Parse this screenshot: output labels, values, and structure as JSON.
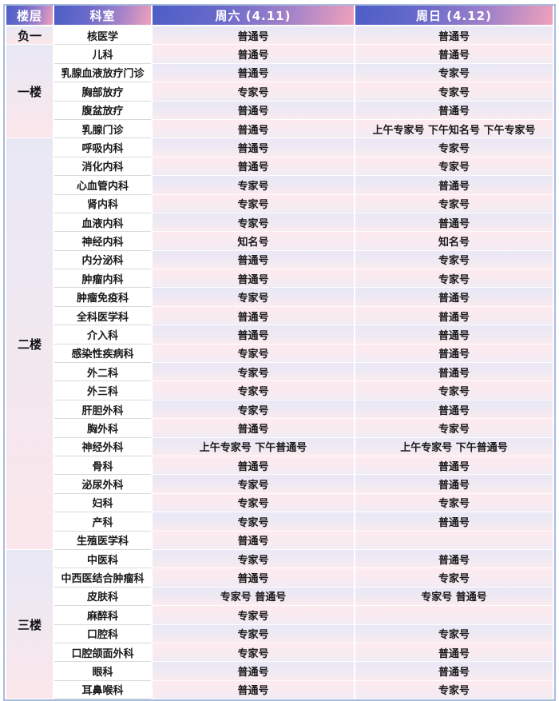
{
  "table": {
    "columns": [
      "楼层",
      "科室",
      "周六 (4.11)",
      "周日 (4.12)"
    ],
    "floors": [
      {
        "label": "负一",
        "rows": [
          {
            "dept": "核医学",
            "sat": "普通号",
            "sun": "普通号"
          }
        ]
      },
      {
        "label": "一楼",
        "rows": [
          {
            "dept": "儿科",
            "sat": "普通号",
            "sun": "普通号"
          },
          {
            "dept": "乳腺血液放疗门诊",
            "sat": "普通号",
            "sun": "专家号"
          },
          {
            "dept": "胸部放疗",
            "sat": "专家号",
            "sun": "专家号"
          },
          {
            "dept": "腹盆放疗",
            "sat": "普通号",
            "sun": "普通号"
          },
          {
            "dept": "乳腺门诊",
            "sat": "普通号",
            "sun": "上午专家号 下午知名号 下午专家号"
          }
        ]
      },
      {
        "label": "二楼",
        "rows": [
          {
            "dept": "呼吸内科",
            "sat": "普通号",
            "sun": "专家号"
          },
          {
            "dept": "消化内科",
            "sat": "普通号",
            "sun": "专家号"
          },
          {
            "dept": "心血管内科",
            "sat": "专家号",
            "sun": "普通号"
          },
          {
            "dept": "肾内科",
            "sat": "专家号",
            "sun": "专家号"
          },
          {
            "dept": "血液内科",
            "sat": "专家号",
            "sun": "普通号"
          },
          {
            "dept": "神经内科",
            "sat": "知名号",
            "sun": "知名号"
          },
          {
            "dept": "内分泌科",
            "sat": "普通号",
            "sun": "专家号"
          },
          {
            "dept": "肿瘤内科",
            "sat": "普通号",
            "sun": "专家号"
          },
          {
            "dept": "肿瘤免疫科",
            "sat": "专家号",
            "sun": "普通号"
          },
          {
            "dept": "全科医学科",
            "sat": "普通号",
            "sun": "普通号"
          },
          {
            "dept": "介入科",
            "sat": "普通号",
            "sun": "普通号"
          },
          {
            "dept": "感染性疾病科",
            "sat": "专家号",
            "sun": "普通号"
          },
          {
            "dept": "外二科",
            "sat": "专家号",
            "sun": "普通号"
          },
          {
            "dept": "外三科",
            "sat": "专家号",
            "sun": "专家号"
          },
          {
            "dept": "肝胆外科",
            "sat": "专家号",
            "sun": "普通号"
          },
          {
            "dept": "胸外科",
            "sat": "普通号",
            "sun": "专家号"
          },
          {
            "dept": "神经外科",
            "sat": "上午专家号 下午普通号",
            "sun": "上午专家号 下午普通号"
          },
          {
            "dept": "骨科",
            "sat": "普通号",
            "sun": "普通号"
          },
          {
            "dept": "泌尿外科",
            "sat": "专家号",
            "sun": "普通号"
          },
          {
            "dept": "妇科",
            "sat": "专家号",
            "sun": "专家号"
          },
          {
            "dept": "产科",
            "sat": "专家号",
            "sun": "普通号"
          },
          {
            "dept": "生殖医学科",
            "sat": "普通号",
            "sun": ""
          }
        ]
      },
      {
        "label": "三楼",
        "rows": [
          {
            "dept": "中医科",
            "sat": "专家号",
            "sun": "普通号"
          },
          {
            "dept": "中西医结合肿瘤科",
            "sat": "普通号",
            "sun": "专家号"
          },
          {
            "dept": "皮肤科",
            "sat": "专家号 普通号",
            "sun": "专家号 普通号"
          },
          {
            "dept": "麻醉科",
            "sat": "专家号",
            "sun": ""
          },
          {
            "dept": "口腔科",
            "sat": "专家号",
            "sun": "专家号"
          },
          {
            "dept": "口腔颌面外科",
            "sat": "专家号",
            "sun": "普通号"
          },
          {
            "dept": "眼科",
            "sat": "普通号",
            "sun": "普通号"
          },
          {
            "dept": "耳鼻喉科",
            "sat": "普通号",
            "sun": "专家号"
          }
        ]
      }
    ]
  },
  "colors": {
    "header_gradient_start": "#4c5ec6",
    "header_gradient_end": "#f0a1bb",
    "row_lavender": "#e9e8f6",
    "row_pink": "#fdeaee",
    "floor_gradient_top": "#e8e8f5",
    "floor_gradient_bottom": "#fbe7eb",
    "outer_border": "#a9bcdc",
    "dept_separator": "#d9d9d9",
    "body_text": "#1a1a1a",
    "header_text": "#ffffff"
  }
}
